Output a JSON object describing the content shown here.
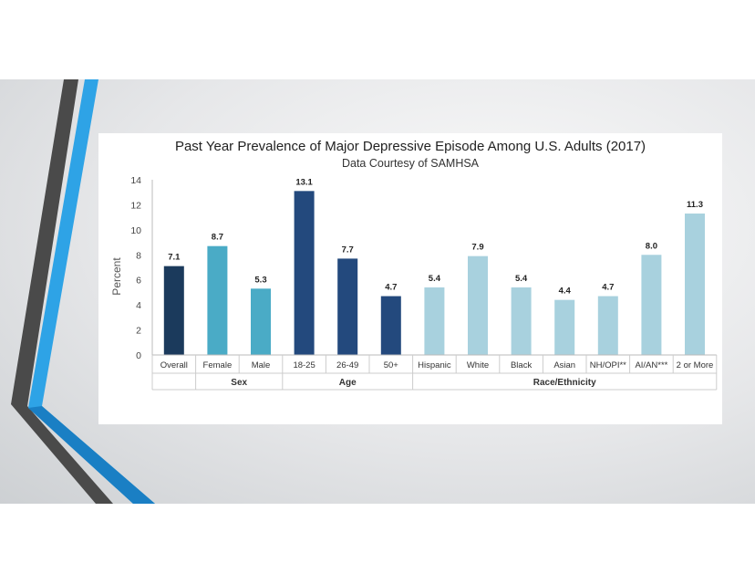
{
  "colors": {
    "overall": "#1b3a5c",
    "sex": "#4aabc6",
    "age": "#23497d",
    "race": "#a8d1de",
    "stripe_dark": "#4a4a4a",
    "stripe_blue": "#2ea3e6"
  },
  "chart_data": {
    "type": "bar",
    "title": "Past Year Prevalence of Major Depressive Episode Among U.S. Adults (2017)",
    "subtitle": "Data Courtesy of SAMHSA",
    "ylabel": "Percent",
    "ylim": [
      0,
      14
    ],
    "yticks": [
      0,
      2,
      4,
      6,
      8,
      10,
      12,
      14
    ],
    "grid": false,
    "categories": [
      "Overall",
      "Female",
      "Male",
      "18-25",
      "26-49",
      "50+",
      "Hispanic",
      "White",
      "Black",
      "Asian",
      "NH/OPI**",
      "AI/AN***",
      "2 or More"
    ],
    "values": [
      7.1,
      8.7,
      5.3,
      13.1,
      7.7,
      4.7,
      5.4,
      7.9,
      5.4,
      4.4,
      4.7,
      8.0,
      11.3
    ],
    "value_labels": [
      "7.1",
      "8.7",
      "5.3",
      "13.1",
      "7.7",
      "4.7",
      "5.4",
      "7.9",
      "5.4",
      "4.4",
      "4.7",
      "8.0",
      "11.3"
    ],
    "bar_groups": [
      "overall",
      "sex",
      "sex",
      "age",
      "age",
      "age",
      "race",
      "race",
      "race",
      "race",
      "race",
      "race",
      "race"
    ],
    "groups": [
      {
        "key": "overall",
        "label": "",
        "count": 1
      },
      {
        "key": "sex",
        "label": "Sex",
        "count": 2
      },
      {
        "key": "age",
        "label": "Age",
        "count": 3
      },
      {
        "key": "race",
        "label": "Race/Ethnicity",
        "count": 7
      }
    ]
  }
}
